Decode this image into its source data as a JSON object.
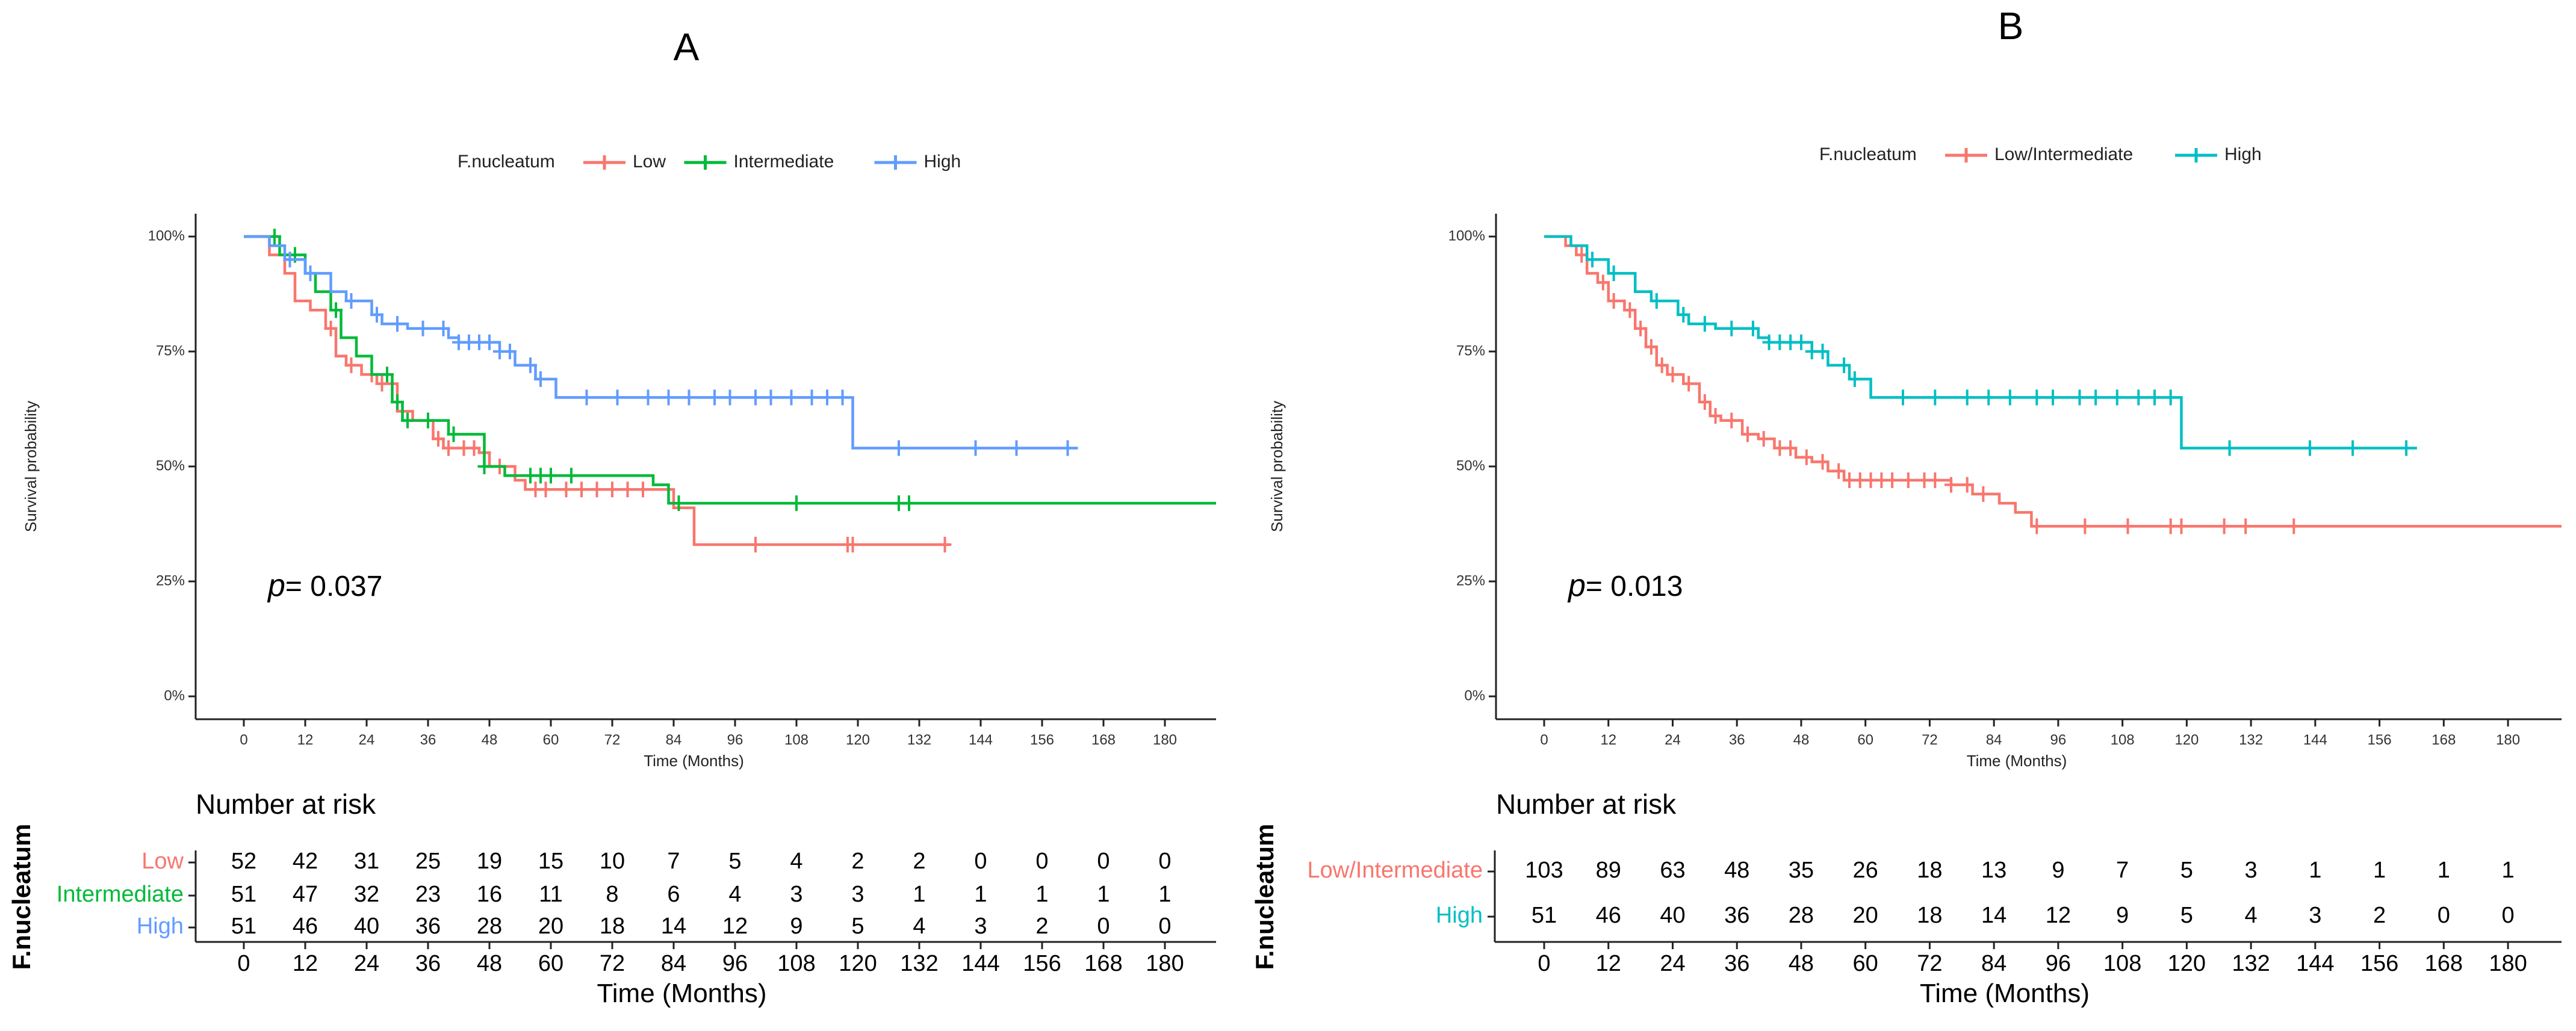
{
  "panels": [
    {
      "id": "A",
      "label": "A",
      "legend_title": "F.nucleatum",
      "y_axis_label": "Survival probability",
      "x_axis_label": "Time (Months)",
      "y_ticks": [
        "0%",
        "25%",
        "50%",
        "75%",
        "100%"
      ],
      "x_ticks": [
        "0",
        "12",
        "24",
        "36",
        "48",
        "60",
        "72",
        "84",
        "96",
        "108",
        "120",
        "132",
        "144",
        "156",
        "168",
        "180"
      ],
      "p_prefix": "p",
      "p_value": "= 0.037",
      "risk_table": {
        "title": "Number at risk",
        "strata_title": "F.nucleatum",
        "x_label": "Time (Months)",
        "times": [
          "0",
          "12",
          "24",
          "36",
          "48",
          "60",
          "72",
          "84",
          "96",
          "108",
          "120",
          "132",
          "144",
          "156",
          "168",
          "180"
        ]
      }
    },
    {
      "id": "B",
      "label": "B",
      "legend_title": "F.nucleatum",
      "y_axis_label": "Survival probability",
      "x_axis_label": "Time (Months)",
      "y_ticks": [
        "0%",
        "25%",
        "50%",
        "75%",
        "100%"
      ],
      "x_ticks": [
        "0",
        "12",
        "24",
        "36",
        "48",
        "60",
        "72",
        "84",
        "96",
        "108",
        "120",
        "132",
        "144",
        "156",
        "168",
        "180"
      ],
      "p_prefix": "p",
      "p_value": "= 0.013",
      "risk_table": {
        "title": "Number at risk",
        "strata_title": "F.nucleatum",
        "x_label": "Time (Months)",
        "times": [
          "0",
          "12",
          "24",
          "36",
          "48",
          "60",
          "72",
          "84",
          "96",
          "108",
          "120",
          "132",
          "144",
          "156",
          "168",
          "180"
        ]
      }
    }
  ],
  "chart_data": [
    {
      "type": "line",
      "title": "A",
      "xlabel": "Time (Months)",
      "ylabel": "Survival probability",
      "xlim": [
        0,
        190
      ],
      "ylim": [
        0,
        1
      ],
      "legend_title": "F.nucleatum",
      "series": [
        {
          "name": "Low",
          "color": "#F8766D",
          "steps": [
            [
              0,
              1.0
            ],
            [
              5,
              0.96
            ],
            [
              8,
              0.92
            ],
            [
              10,
              0.86
            ],
            [
              13,
              0.84
            ],
            [
              16,
              0.8
            ],
            [
              18,
              0.74
            ],
            [
              20,
              0.72
            ],
            [
              23,
              0.7
            ],
            [
              26,
              0.68
            ],
            [
              30,
              0.62
            ],
            [
              33,
              0.6
            ],
            [
              37,
              0.56
            ],
            [
              39,
              0.54
            ],
            [
              46,
              0.53
            ],
            [
              48,
              0.5
            ],
            [
              53,
              0.47
            ],
            [
              55,
              0.45
            ],
            [
              62,
              0.45
            ],
            [
              80,
              0.45
            ],
            [
              84,
              0.41
            ],
            [
              88,
              0.33
            ],
            [
              138,
              0.33
            ]
          ],
          "censor": [
            17,
            21,
            25,
            27,
            31,
            36,
            38,
            40,
            43,
            45,
            47,
            50,
            57,
            59,
            63,
            66,
            69,
            72,
            75,
            78,
            100,
            118,
            119,
            137
          ]
        },
        {
          "name": "Intermediate",
          "color": "#00BA38",
          "steps": [
            [
              0,
              1.0
            ],
            [
              7,
              0.96
            ],
            [
              12,
              0.92
            ],
            [
              14,
              0.88
            ],
            [
              17,
              0.84
            ],
            [
              19,
              0.78
            ],
            [
              22,
              0.74
            ],
            [
              25,
              0.7
            ],
            [
              29,
              0.64
            ],
            [
              31,
              0.6
            ],
            [
              40,
              0.57
            ],
            [
              47,
              0.5
            ],
            [
              51,
              0.48
            ],
            [
              80,
              0.46
            ],
            [
              83,
              0.42
            ],
            [
              190,
              0.42
            ]
          ],
          "censor": [
            6,
            10,
            18,
            28,
            30,
            32,
            36,
            41,
            47,
            56,
            58,
            60,
            64,
            85,
            108,
            128,
            130
          ]
        },
        {
          "name": "High",
          "color": "#619CFF",
          "steps": [
            [
              0,
              1.0
            ],
            [
              5,
              0.98
            ],
            [
              8,
              0.95
            ],
            [
              12,
              0.92
            ],
            [
              17,
              0.88
            ],
            [
              20,
              0.86
            ],
            [
              25,
              0.83
            ],
            [
              27,
              0.81
            ],
            [
              32,
              0.8
            ],
            [
              40,
              0.78
            ],
            [
              42,
              0.77
            ],
            [
              50,
              0.75
            ],
            [
              53,
              0.72
            ],
            [
              57,
              0.69
            ],
            [
              61,
              0.65
            ],
            [
              118,
              0.65
            ],
            [
              119,
              0.54
            ],
            [
              163,
              0.54
            ]
          ],
          "censor": [
            9,
            13,
            21,
            26,
            30,
            35,
            39,
            42,
            44,
            46,
            48,
            50,
            52,
            56,
            58,
            67,
            73,
            79,
            83,
            87,
            92,
            95,
            100,
            103,
            107,
            111,
            114,
            117,
            128,
            143,
            151,
            161
          ]
        }
      ],
      "number_at_risk": [
        {
          "name": "Low",
          "values": [
            52,
            42,
            31,
            25,
            19,
            15,
            10,
            7,
            5,
            4,
            2,
            2,
            0,
            0,
            0,
            0
          ]
        },
        {
          "name": "Intermediate",
          "values": [
            51,
            47,
            32,
            23,
            16,
            11,
            8,
            6,
            4,
            3,
            3,
            1,
            1,
            1,
            1,
            1
          ]
        },
        {
          "name": "High",
          "values": [
            51,
            46,
            40,
            36,
            28,
            20,
            18,
            14,
            12,
            9,
            5,
            4,
            3,
            2,
            0,
            0
          ]
        }
      ]
    },
    {
      "type": "line",
      "title": "B",
      "xlabel": "Time (Months)",
      "ylabel": "Survival probability",
      "xlim": [
        0,
        190
      ],
      "ylim": [
        0,
        1
      ],
      "legend_title": "F.nucleatum",
      "series": [
        {
          "name": "Low/Intermediate",
          "color": "#F8766D",
          "steps": [
            [
              0,
              1.0
            ],
            [
              4,
              0.98
            ],
            [
              6,
              0.96
            ],
            [
              8,
              0.92
            ],
            [
              10,
              0.9
            ],
            [
              12,
              0.86
            ],
            [
              15,
              0.84
            ],
            [
              17,
              0.8
            ],
            [
              19,
              0.76
            ],
            [
              21,
              0.72
            ],
            [
              23,
              0.7
            ],
            [
              26,
              0.68
            ],
            [
              29,
              0.64
            ],
            [
              31,
              0.61
            ],
            [
              33,
              0.6
            ],
            [
              37,
              0.57
            ],
            [
              40,
              0.56
            ],
            [
              43,
              0.54
            ],
            [
              47,
              0.52
            ],
            [
              50,
              0.51
            ],
            [
              53,
              0.49
            ],
            [
              56,
              0.47
            ],
            [
              59,
              0.47
            ],
            [
              76,
              0.46
            ],
            [
              80,
              0.44
            ],
            [
              85,
              0.42
            ],
            [
              88,
              0.4
            ],
            [
              91,
              0.37
            ],
            [
              190,
              0.37
            ]
          ],
          "censor": [
            7,
            11,
            13,
            16,
            18,
            20,
            22,
            24,
            27,
            30,
            32,
            35,
            38,
            41,
            44,
            46,
            49,
            52,
            55,
            57,
            59,
            61,
            63,
            65,
            68,
            71,
            73,
            76,
            79,
            82,
            92,
            101,
            109,
            117,
            119,
            127,
            131,
            140
          ]
        },
        {
          "name": "High",
          "color": "#00BFC4",
          "steps": [
            [
              0,
              1.0
            ],
            [
              5,
              0.98
            ],
            [
              8,
              0.95
            ],
            [
              12,
              0.92
            ],
            [
              17,
              0.88
            ],
            [
              20,
              0.86
            ],
            [
              25,
              0.83
            ],
            [
              27,
              0.81
            ],
            [
              32,
              0.8
            ],
            [
              40,
              0.78
            ],
            [
              42,
              0.77
            ],
            [
              50,
              0.75
            ],
            [
              53,
              0.72
            ],
            [
              57,
              0.69
            ],
            [
              61,
              0.65
            ],
            [
              118,
              0.65
            ],
            [
              119,
              0.54
            ],
            [
              163,
              0.54
            ]
          ],
          "censor": [
            9,
            13,
            21,
            26,
            30,
            35,
            39,
            42,
            44,
            46,
            48,
            50,
            52,
            56,
            58,
            67,
            73,
            79,
            83,
            87,
            92,
            95,
            100,
            103,
            107,
            111,
            114,
            117,
            128,
            143,
            151,
            161
          ]
        }
      ],
      "number_at_risk": [
        {
          "name": "Low/Intermediate",
          "values": [
            103,
            89,
            63,
            48,
            35,
            26,
            18,
            13,
            9,
            7,
            5,
            3,
            1,
            1,
            1,
            1
          ]
        },
        {
          "name": "High",
          "values": [
            51,
            46,
            40,
            36,
            28,
            20,
            18,
            14,
            12,
            9,
            5,
            4,
            3,
            2,
            0,
            0
          ]
        }
      ]
    }
  ]
}
